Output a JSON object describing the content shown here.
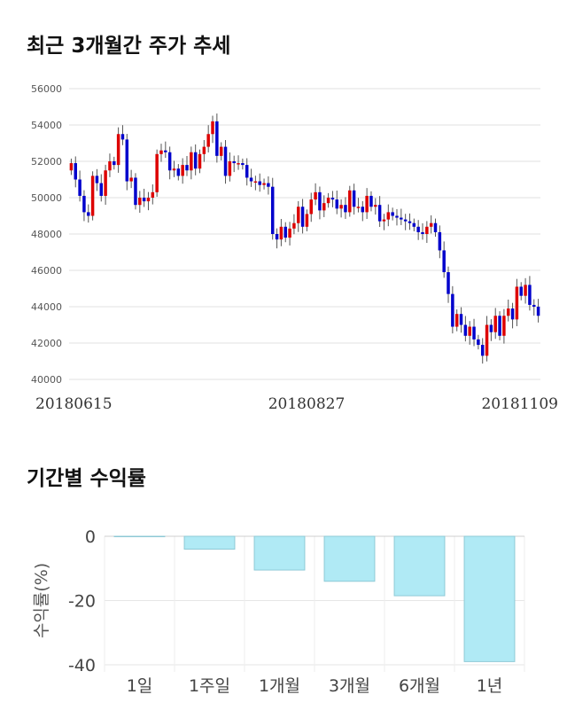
{
  "sections": {
    "price_title": "최근 3개월간 주가 추세",
    "return_title": "기간별 수익률"
  },
  "chart_data": [
    {
      "type": "candlestick",
      "title": "최근 3개월간 주가 추세",
      "ylim": [
        40000,
        56000
      ],
      "yticks": [
        40000,
        42000,
        44000,
        46000,
        48000,
        50000,
        52000,
        54000,
        56000
      ],
      "x_tick_labels": [
        "20180615",
        "20180827",
        "20181109"
      ],
      "grid": true,
      "up_color": "#dd0000",
      "down_color": "#0000cc",
      "closes": [
        51900,
        51000,
        50100,
        49200,
        49000,
        51200,
        50800,
        50100,
        51500,
        52000,
        51800,
        53500,
        53200,
        50900,
        51100,
        49600,
        50000,
        49800,
        50000,
        50300,
        52400,
        52600,
        52500,
        51500,
        51600,
        51200,
        51800,
        51500,
        52500,
        51600,
        52400,
        52800,
        53500,
        54200,
        52300,
        52800,
        51200,
        52000,
        51900,
        51900,
        51800,
        51100,
        50900,
        50900,
        50700,
        50800,
        50600,
        48000,
        47700,
        48400,
        47800,
        48300,
        48600,
        49500,
        48400,
        49100,
        49900,
        50300,
        49300,
        49700,
        50000,
        49900,
        49400,
        49600,
        49200,
        50400,
        49500,
        49500,
        49200,
        50100,
        49500,
        49600,
        48700,
        48800,
        49200,
        49000,
        48900,
        48800,
        48700,
        48600,
        48400,
        48100,
        48000,
        48400,
        48600,
        48100,
        47100,
        45900,
        44700,
        42900,
        43600,
        43000,
        42400,
        42900,
        42200,
        41900,
        41300,
        43000,
        42600,
        43500,
        42400,
        43500,
        43900,
        43300,
        45100,
        44600,
        45200,
        44100,
        44000,
        43500
      ]
    },
    {
      "type": "bar",
      "categories": [
        "1일",
        "1주일",
        "1개월",
        "3개월",
        "6개월",
        "1년"
      ],
      "values": [
        0,
        -4,
        -10.5,
        -14,
        -18.5,
        -39
      ],
      "ylabel": "수익률(%)",
      "ylim": [
        -40,
        0
      ],
      "yticks": [
        0,
        -20,
        -40
      ],
      "grid": true,
      "bar_color": "#b0eaf5",
      "bar_stroke": "#8ec9d6"
    }
  ]
}
